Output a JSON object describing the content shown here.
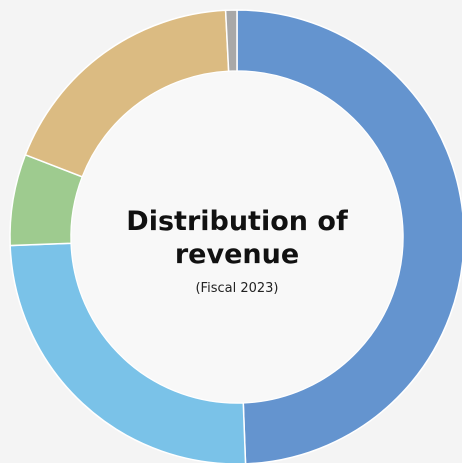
{
  "chart_data": {
    "type": "donut",
    "title": "Distribution of revenue",
    "subtitle": "(Fiscal 2023)",
    "values": [
      49.4,
      25,
      6.5,
      18.3,
      0.8
    ],
    "colors": [
      "#6494cf",
      "#7ac2e8",
      "#9ecb8f",
      "#dbbb82",
      "#a8a8a8"
    ]
  }
}
